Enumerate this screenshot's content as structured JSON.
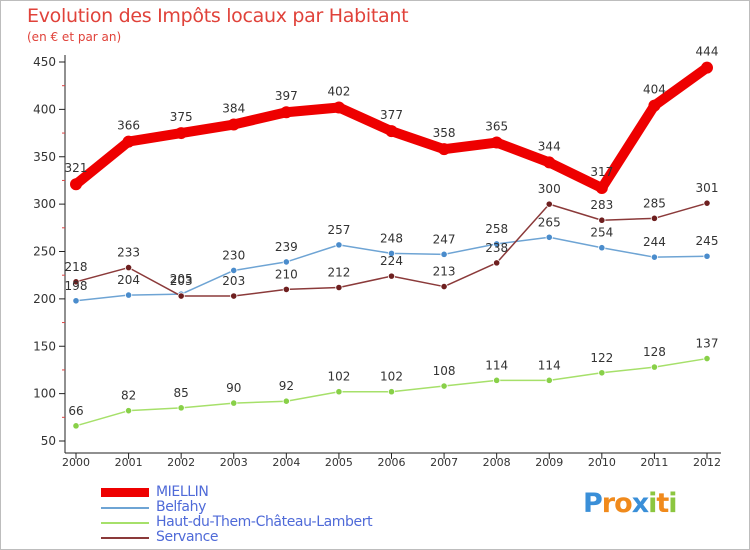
{
  "title": "Evolution des Impôts locaux par Habitant",
  "subtitle": "(en € et par an)",
  "brand": {
    "text": "Proxiti",
    "letters": [
      "P",
      "r",
      "o",
      "x",
      "i",
      "t",
      "i"
    ],
    "colors": [
      "#3a8fd8",
      "#f08a1c",
      "#f08a1c",
      "#3a8fd8",
      "#8cc63f",
      "#f08a1c",
      "#8cc63f"
    ]
  },
  "chart_data": {
    "type": "line",
    "title": "Evolution des Impôts locaux par Habitant",
    "subtitle": "(en € et par an)",
    "xlabel": "",
    "ylabel": "",
    "ylim": [
      50,
      450
    ],
    "y_ticks": [
      50,
      100,
      150,
      200,
      250,
      300,
      350,
      400,
      450
    ],
    "grid": false,
    "legend_position": "bottom-left",
    "x": [
      "2000",
      "2001",
      "2002",
      "2003",
      "2004",
      "2005",
      "2006",
      "2007",
      "2008",
      "2009",
      "2010",
      "2011",
      "2012"
    ],
    "series": [
      {
        "name": "MIELLIN",
        "color": "#ee0000",
        "marker_color": "#ee0000",
        "weight": "thick",
        "values": [
          321,
          366,
          375,
          384,
          397,
          402,
          377,
          358,
          365,
          344,
          317,
          404,
          444
        ]
      },
      {
        "name": "Belfahy",
        "color": "#6ea4d4",
        "marker_color": "#4a8ccc",
        "weight": "thin",
        "values": [
          198,
          204,
          205,
          230,
          239,
          257,
          248,
          247,
          258,
          265,
          254,
          244,
          245
        ]
      },
      {
        "name": "Haut-du-Them-Château-Lambert",
        "color": "#a6e06a",
        "marker_color": "#88d048",
        "weight": "thin",
        "values": [
          66,
          82,
          85,
          90,
          92,
          102,
          102,
          108,
          114,
          114,
          122,
          128,
          137
        ]
      },
      {
        "name": "Servance",
        "color": "#8b3a3a",
        "marker_color": "#6e1f1f",
        "weight": "thin",
        "values": [
          218,
          233,
          203,
          203,
          210,
          212,
          224,
          213,
          238,
          300,
          283,
          285,
          301
        ]
      }
    ],
    "point_labels": {
      "MIELLIN": [
        "321",
        "366",
        "375",
        "384",
        "397",
        "402",
        "377",
        "358",
        "365",
        "344",
        "317",
        "404",
        "444"
      ],
      "Belfahy": [
        "198",
        "204",
        "205",
        "230",
        "239",
        "257",
        "248",
        "247",
        "258",
        "265",
        "254",
        "244",
        "245"
      ],
      "Haut-du-Them-Château-Lambert": [
        "66",
        "82",
        "85",
        "90",
        "92",
        "102",
        "102",
        "108",
        "114",
        "114",
        "122",
        "128",
        "137"
      ],
      "Servance": [
        "218",
        "233",
        "203",
        "203",
        "210",
        "212",
        "224",
        "213",
        "238",
        "300",
        "283",
        "285",
        "301"
      ]
    }
  }
}
